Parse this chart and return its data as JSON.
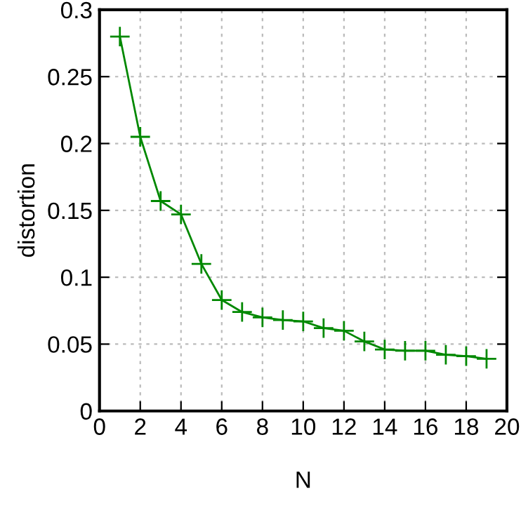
{
  "chart_data": {
    "type": "line",
    "xlabel": "N",
    "ylabel": "distortion",
    "x": [
      1,
      2,
      3,
      4,
      5,
      6,
      7,
      8,
      9,
      10,
      11,
      12,
      13,
      14,
      15,
      16,
      17,
      18,
      19
    ],
    "series": [
      {
        "color": "#008800",
        "values": [
          0.28,
          0.205,
          0.157,
          0.147,
          0.11,
          0.083,
          0.074,
          0.07,
          0.068,
          0.067,
          0.062,
          0.06,
          0.052,
          0.046,
          0.045,
          0.045,
          0.042,
          0.041,
          0.039
        ]
      }
    ],
    "xlim": [
      0,
      20
    ],
    "xticks": [
      0,
      2,
      4,
      6,
      8,
      10,
      12,
      14,
      16,
      18,
      20
    ],
    "ylim": [
      0,
      0.3
    ],
    "yticks": [
      0,
      0.05,
      0.1,
      0.15,
      0.2,
      0.25,
      0.3
    ],
    "grid": true,
    "marker": "cross",
    "line_style": "solid"
  }
}
